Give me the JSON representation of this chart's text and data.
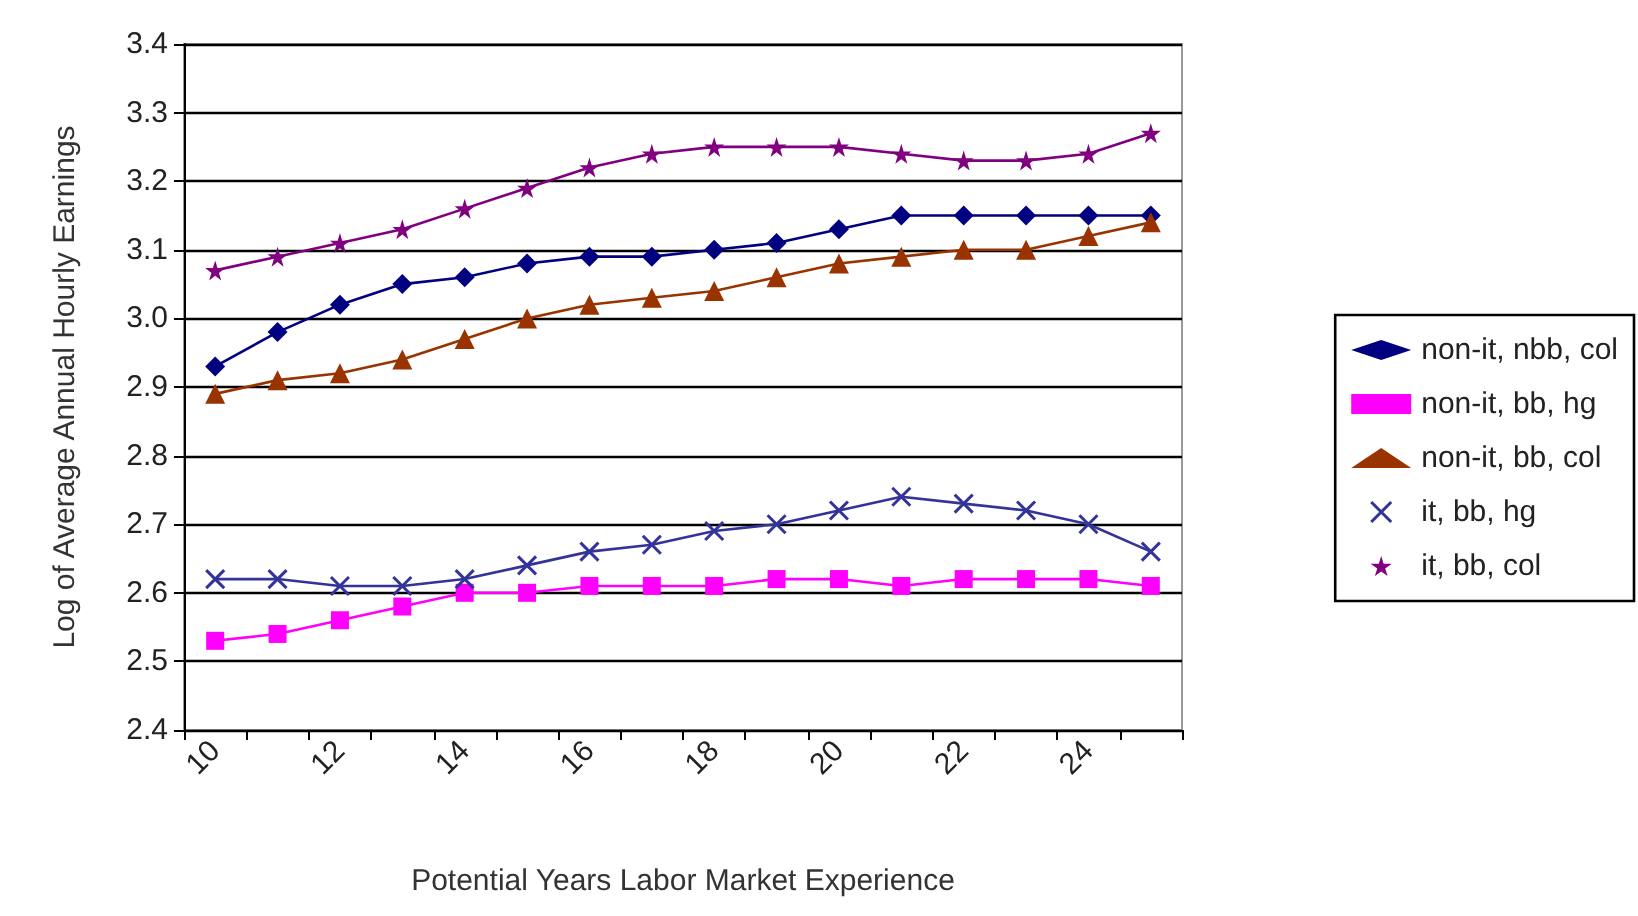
{
  "chart_data": {
    "type": "line",
    "xlabel": "Potential Years Labor Market Experience",
    "ylabel": "Log of Average Annual Hourly Earnings",
    "categories": [
      "10",
      null,
      "12",
      null,
      "14",
      null,
      "16",
      null,
      "18",
      null,
      "20",
      null,
      "22",
      null,
      "24",
      null
    ],
    "series": [
      {
        "name": "non-it, nbb, col",
        "color": "#000080",
        "marker": "diamond",
        "values": [
          2.93,
          2.98,
          3.02,
          3.05,
          3.06,
          3.08,
          3.09,
          3.09,
          3.1,
          3.11,
          3.13,
          3.15,
          3.15,
          3.15,
          3.15,
          3.15
        ]
      },
      {
        "name": "non-it, bb, hg",
        "color": "#ff00ff",
        "marker": "square",
        "values": [
          2.53,
          2.54,
          2.56,
          2.58,
          2.6,
          2.6,
          2.61,
          2.61,
          2.61,
          2.62,
          2.62,
          2.61,
          2.62,
          2.62,
          2.62,
          2.61
        ]
      },
      {
        "name": "non-it, bb, col",
        "color": "#993300",
        "marker": "triangle",
        "values": [
          2.89,
          2.91,
          2.92,
          2.94,
          2.97,
          3.0,
          3.02,
          3.03,
          3.04,
          3.06,
          3.08,
          3.09,
          3.1,
          3.1,
          3.12,
          3.14
        ]
      },
      {
        "name": "it, bb, hg",
        "color": "#333399",
        "marker": "cross",
        "values": [
          2.62,
          2.62,
          2.61,
          2.61,
          2.62,
          2.64,
          2.66,
          2.67,
          2.69,
          2.7,
          2.72,
          2.74,
          2.73,
          2.72,
          2.7,
          2.66
        ]
      },
      {
        "name": "it, bb, col",
        "color": "#800080",
        "marker": "star",
        "values": [
          3.07,
          3.09,
          3.11,
          3.13,
          3.16,
          3.19,
          3.22,
          3.24,
          3.25,
          3.25,
          3.25,
          3.24,
          3.23,
          3.23,
          3.24,
          3.27
        ]
      }
    ],
    "ylim": [
      2.4,
      3.4
    ],
    "yticks": [
      {
        "value": 2.4,
        "label": "2.4"
      },
      {
        "value": 2.5,
        "label": "2.5"
      },
      {
        "value": 2.6,
        "label": "2.6"
      },
      {
        "value": 2.7,
        "label": "2.7"
      },
      {
        "value": 2.8,
        "label": "2.8"
      },
      {
        "value": 2.9,
        "label": "2.9"
      },
      {
        "value": 3.0,
        "label": "3.0"
      },
      {
        "value": 3.1,
        "label": "3.1"
      },
      {
        "value": 3.2,
        "label": "3.2"
      },
      {
        "value": 3.3,
        "label": "3.3"
      },
      {
        "value": 3.4,
        "label": "3.4"
      }
    ],
    "grid": "y",
    "legend": "right",
    "line_style": "solid"
  }
}
